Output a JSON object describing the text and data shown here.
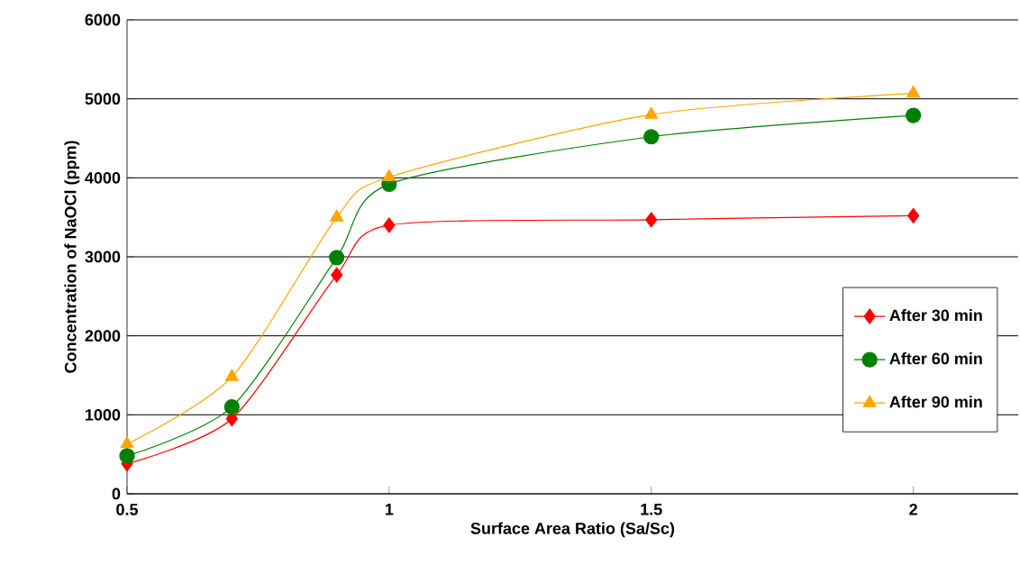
{
  "chart_data": {
    "type": "line",
    "xlabel": "Surface Area Ratio (Sa/Sc)",
    "ylabel": "Concentration of NaOCl (ppm)",
    "x": [
      0.5,
      0.7,
      0.9,
      1,
      1.5,
      2
    ],
    "series": [
      {
        "name": "After 30 min",
        "color": "#ff0000",
        "marker": "diamond",
        "values": [
          380,
          950,
          2770,
          3400,
          3470,
          3520
        ]
      },
      {
        "name": "After 60 min",
        "color": "#008000",
        "marker": "circle",
        "values": [
          480,
          1100,
          2990,
          3920,
          4520,
          4790
        ]
      },
      {
        "name": "After 90 min",
        "color": "#ffa500",
        "marker": "triangle",
        "values": [
          630,
          1480,
          3500,
          4010,
          4800,
          5070
        ]
      }
    ],
    "xlim": [
      0.5,
      2.2
    ],
    "ylim": [
      0,
      6000
    ],
    "xticks": [
      0.5,
      1,
      1.5,
      2
    ],
    "yticks": [
      0,
      1000,
      2000,
      3000,
      4000,
      5000,
      6000
    ],
    "grid": "y",
    "legend": "bottom right",
    "line_style": "solid"
  }
}
